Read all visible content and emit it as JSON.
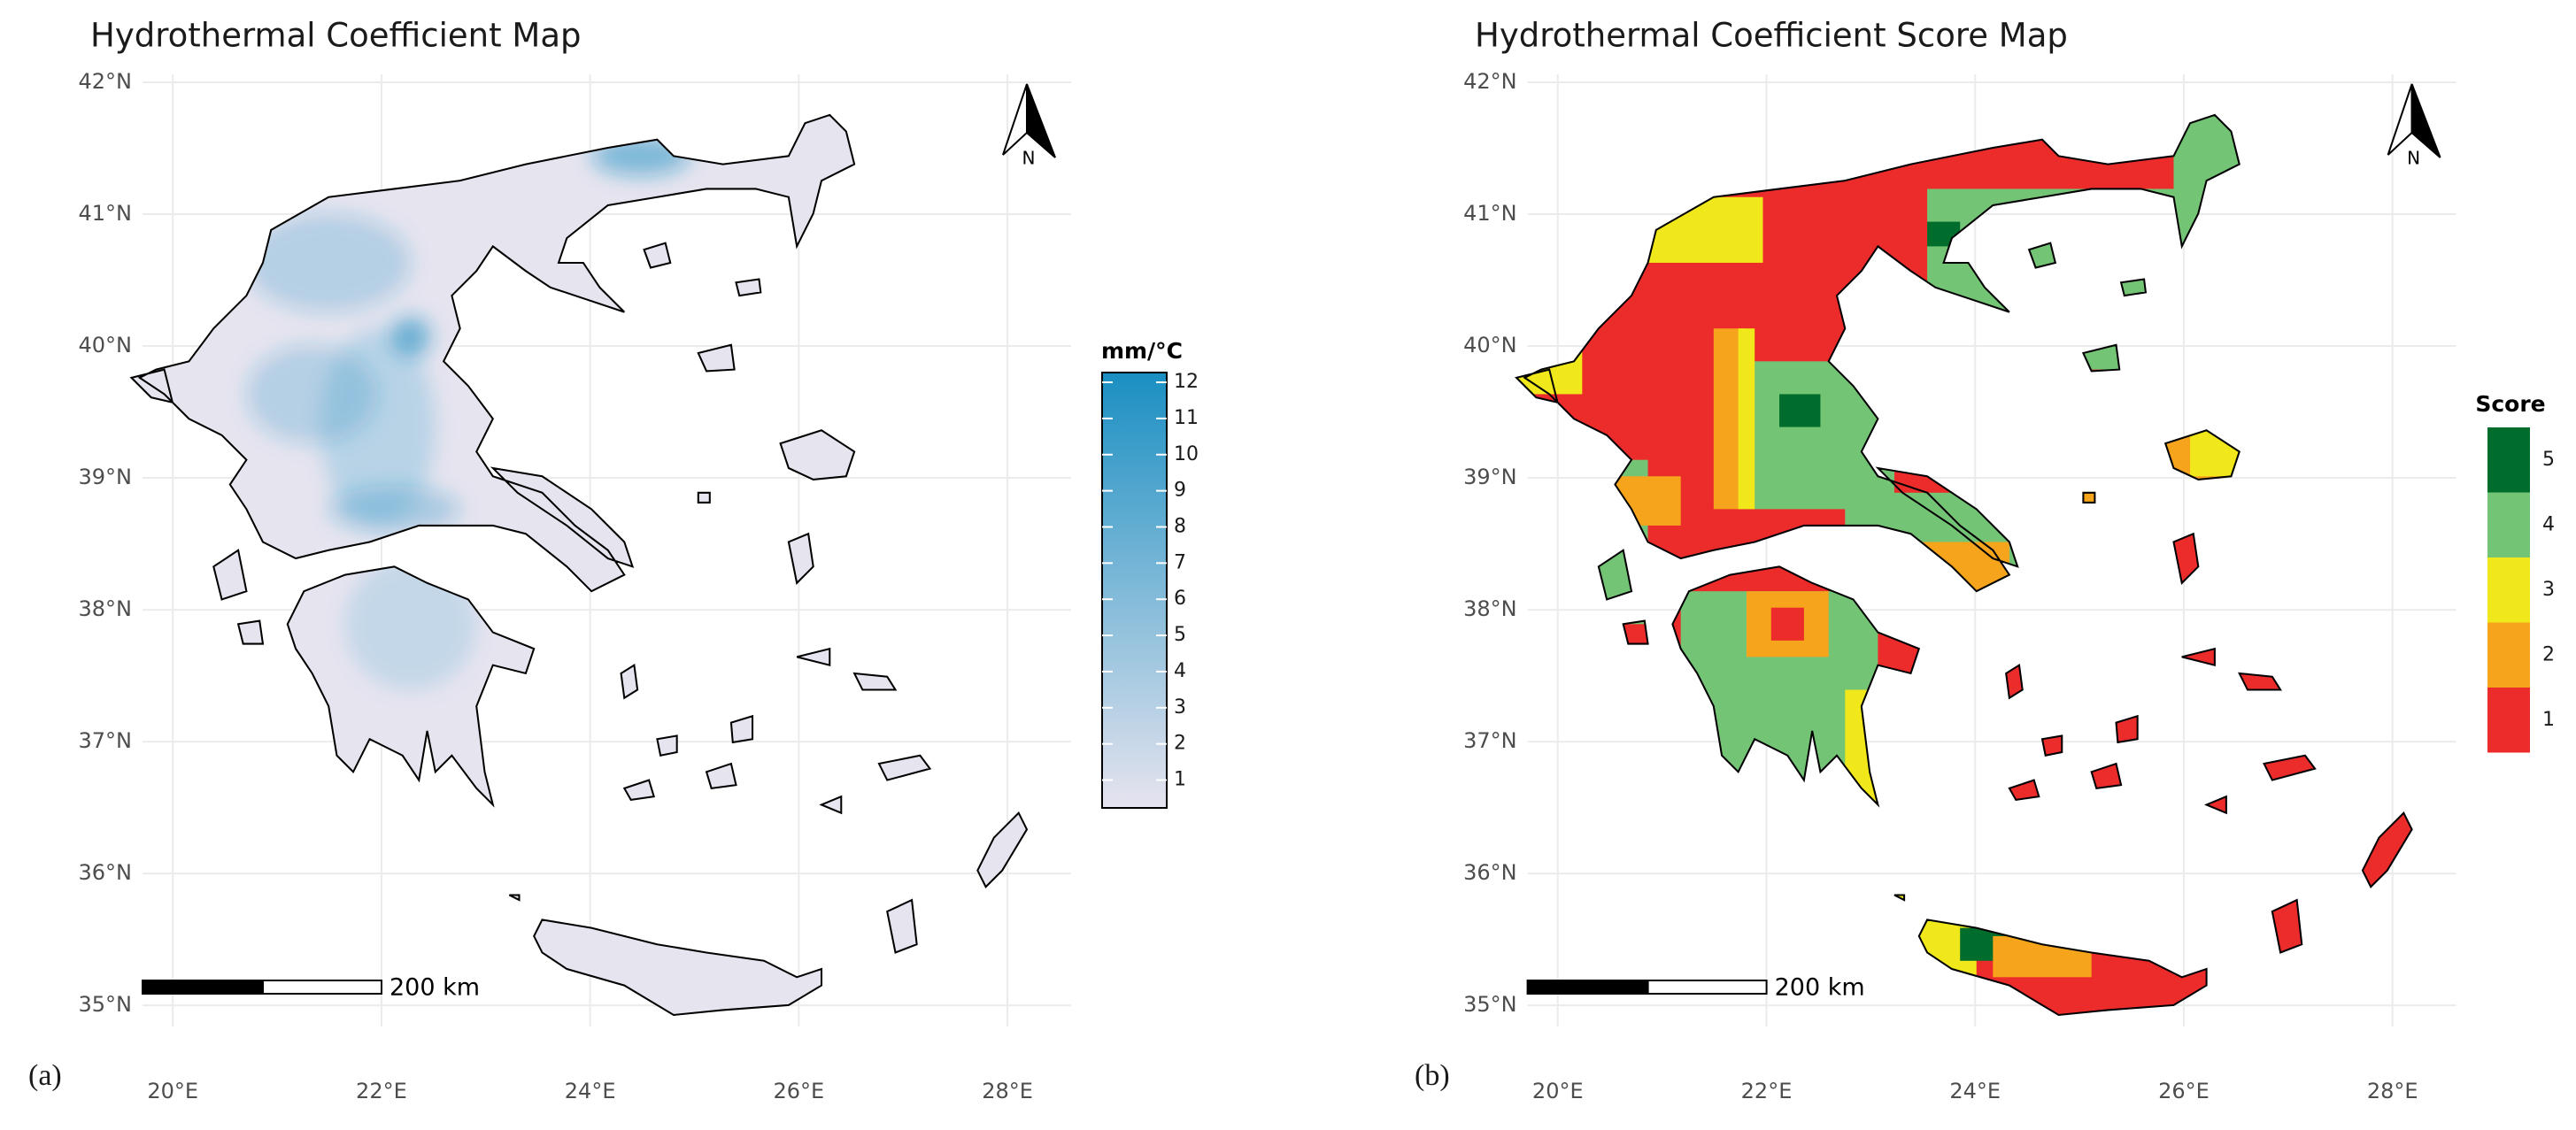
{
  "panels": [
    {
      "label": "(a)",
      "title": "Hydrothermal Coefficient Map",
      "legend": {
        "title": "mm/°C",
        "lim": [
          0.23,
          12.27
        ],
        "ticks": [
          1,
          2,
          3,
          4,
          5,
          6,
          7,
          8,
          9,
          10,
          11,
          12
        ],
        "low_color": "#e6e4ef",
        "high_color": "#1a8fc2"
      }
    },
    {
      "label": "(b)",
      "title": "Hydrothermal Coefficient Score Map",
      "legend": {
        "title": "Score",
        "items": [
          {
            "label": "5",
            "color": "#006d2c"
          },
          {
            "label": "4",
            "color": "#74c476"
          },
          {
            "label": "3",
            "color": "#f0e81a"
          },
          {
            "label": "2",
            "color": "#f7a41d"
          },
          {
            "label": "1",
            "color": "#ec2b2b"
          }
        ]
      }
    }
  ],
  "axes": {
    "xlim": [
      19.71,
      28.61
    ],
    "ylim": [
      34.84,
      42.06
    ],
    "xticks": [
      {
        "value": 20,
        "label": "20°E"
      },
      {
        "value": 22,
        "label": "22°E"
      },
      {
        "value": 24,
        "label": "24°E"
      },
      {
        "value": 26,
        "label": "26°E"
      },
      {
        "value": 28,
        "label": "28°E"
      }
    ],
    "yticks": [
      {
        "value": 35,
        "label": "35°N"
      },
      {
        "value": 36,
        "label": "36°N"
      },
      {
        "value": 37,
        "label": "37°N"
      },
      {
        "value": 38,
        "label": "38°N"
      },
      {
        "value": 39,
        "label": "39°N"
      },
      {
        "value": 40,
        "label": "40°N"
      },
      {
        "value": 41,
        "label": "41°N"
      },
      {
        "value": 42,
        "label": "42°N"
      }
    ]
  },
  "scale_bar": {
    "label": "200 km"
  },
  "north": "N"
}
